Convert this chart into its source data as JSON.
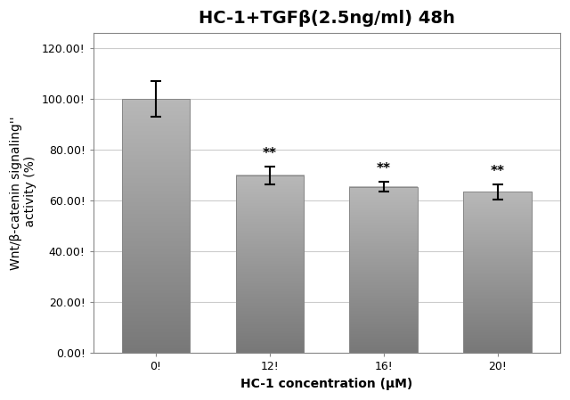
{
  "title": "HC-1+TGFβ(2.5ng/ml) 48h",
  "categories": [
    "0!",
    "12!",
    "16!",
    "20!"
  ],
  "values": [
    100.0,
    70.0,
    65.5,
    63.5
  ],
  "errors": [
    7.0,
    3.5,
    2.0,
    3.0
  ],
  "bar_color_top": "#b8b8b8",
  "bar_color_bottom": "#787878",
  "bar_edge_color": "#888888",
  "ylabel_line1": "Wnt/β-catenin signaling''",
  "ylabel_line2": " activity (%)",
  "xlabel": "HC-1 concentration (μM)",
  "ylim": [
    0,
    126
  ],
  "yticks": [
    0.0,
    20.0,
    40.0,
    60.0,
    80.0,
    100.0,
    120.0
  ],
  "ytick_labels": [
    "0.00!",
    "20.00!",
    "40.00!",
    "60.00!",
    "80.00!",
    "100.00!",
    "120.00!"
  ],
  "significance": [
    "",
    "**",
    "**",
    "**"
  ],
  "background_color": "#ffffff",
  "plot_bg_color": "#ffffff",
  "grid_color": "#cccccc",
  "bar_width": 0.6,
  "title_fontsize": 14,
  "axis_fontsize": 10,
  "tick_fontsize": 9
}
